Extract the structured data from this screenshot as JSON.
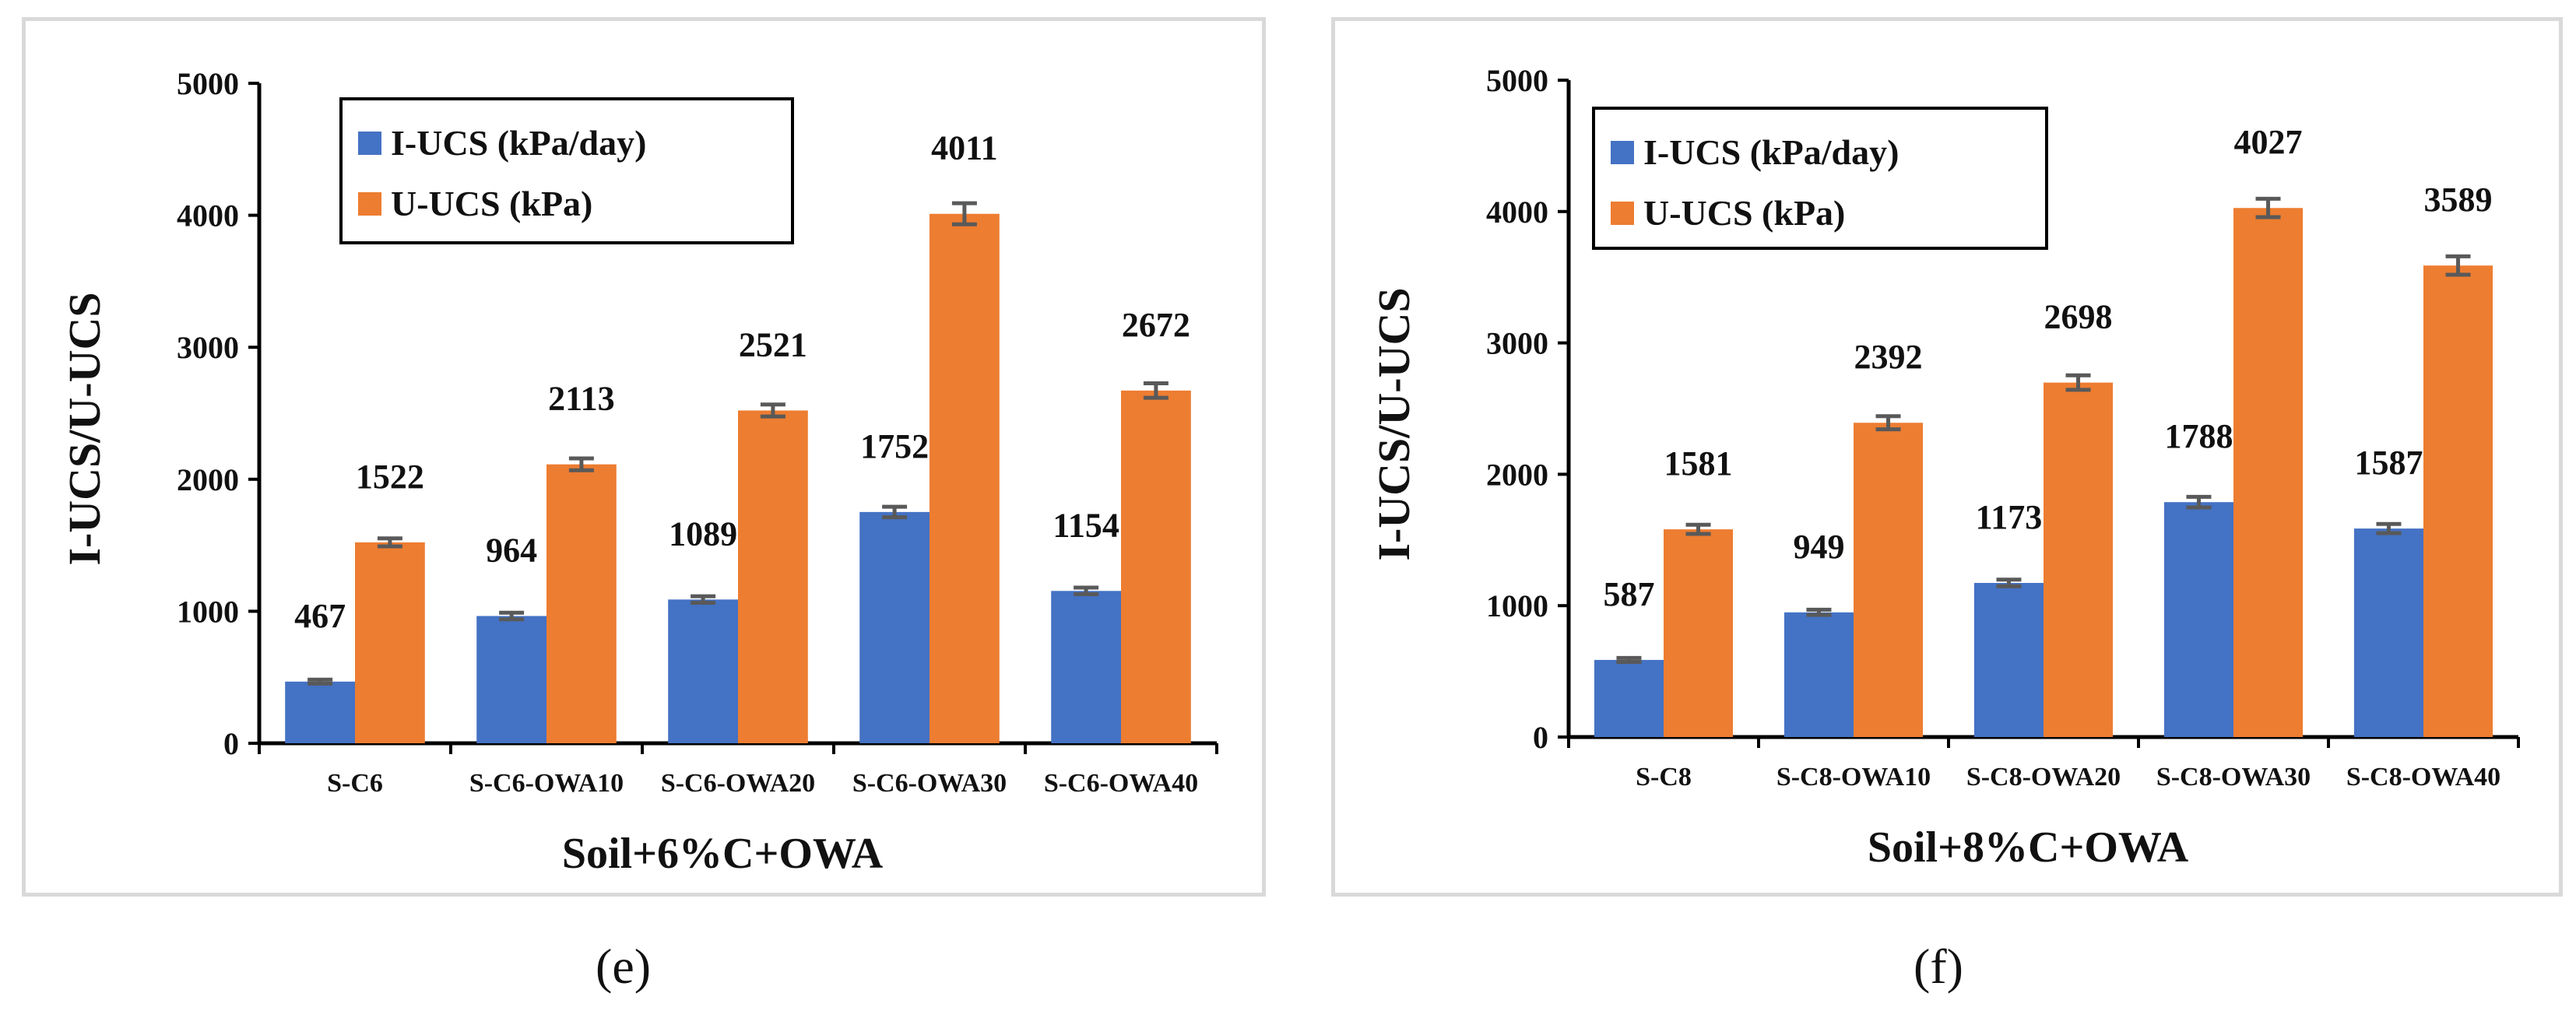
{
  "chart_data": [
    {
      "type": "bar",
      "panel": "e",
      "title": "",
      "xlabel": "Soil+6%C+OWA",
      "ylabel": "I-UCS/U-UCS",
      "ylim": [
        0,
        5000
      ],
      "yticks": [
        "0",
        "1000",
        "2000",
        "3000",
        "4000",
        "5000"
      ],
      "categories": [
        "S-C6",
        "S-C6-OWA10",
        "S-C6-OWA20",
        "S-C6-OWA30",
        "S-C6-OWA40"
      ],
      "series": [
        {
          "name": "I-UCS (kPa/day)",
          "color": "#4472c4",
          "values": [
            467,
            964,
            1089,
            1752,
            1154
          ],
          "labels": [
            "467",
            "964",
            "1089",
            "1752",
            "1154"
          ],
          "errors": [
            15,
            25,
            25,
            40,
            25
          ]
        },
        {
          "name": "U-UCS (kPa)",
          "color": "#ed7d31",
          "values": [
            1522,
            2113,
            2521,
            4011,
            2672
          ],
          "labels": [
            "1522",
            "2113",
            "2521",
            "4011",
            "2672"
          ],
          "errors": [
            30,
            45,
            45,
            80,
            55
          ]
        }
      ],
      "legend": "top-left",
      "grid": false
    },
    {
      "type": "bar",
      "panel": "f",
      "title": "",
      "xlabel": "Soil+8%C+OWA",
      "ylabel": "I-UCS/U-UCS",
      "ylim": [
        0,
        5000
      ],
      "yticks": [
        "0",
        "1000",
        "2000",
        "3000",
        "4000",
        "5000"
      ],
      "categories": [
        "S-C8",
        "S-C8-OWA10",
        "S-C8-OWA20",
        "S-C8-OWA30",
        "S-C8-OWA40"
      ],
      "series": [
        {
          "name": "I-UCS (kPa/day)",
          "color": "#4472c4",
          "values": [
            587,
            949,
            1173,
            1788,
            1587
          ],
          "labels": [
            "587",
            "949",
            "1173",
            "1788",
            "1587"
          ],
          "errors": [
            15,
            20,
            25,
            40,
            35
          ]
        },
        {
          "name": "U-UCS (kPa)",
          "color": "#ed7d31",
          "values": [
            1581,
            2392,
            2698,
            4027,
            3589
          ],
          "labels": [
            "1581",
            "2392",
            "2698",
            "4027",
            "3589"
          ],
          "errors": [
            35,
            50,
            55,
            70,
            70
          ]
        }
      ],
      "legend": "top-left",
      "grid": false
    }
  ],
  "captions": {
    "e": "(e)",
    "f": "(f)"
  }
}
